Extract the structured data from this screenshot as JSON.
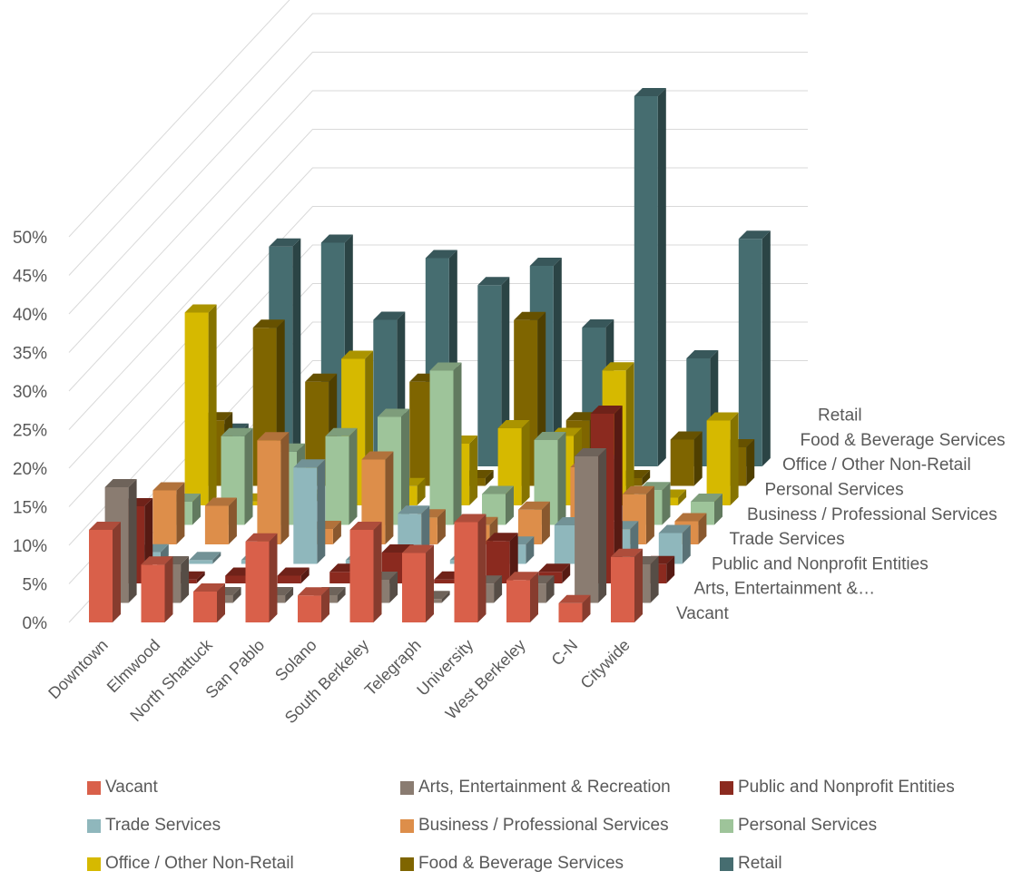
{
  "chart_data": {
    "type": "bar",
    "subtype": "3d-column",
    "title": "",
    "xlabel": "",
    "ylabel": "",
    "ylim": [
      0,
      50
    ],
    "y_ticks": [
      "0%",
      "5%",
      "10%",
      "15%",
      "20%",
      "25%",
      "30%",
      "35%",
      "40%",
      "45%",
      "50%"
    ],
    "grid": true,
    "legend_position": "bottom",
    "categories": [
      "Downtown",
      "Elmwood",
      "North Shattuck",
      "San Pablo",
      "Solano",
      "South Berkeley",
      "Telegraph",
      "University",
      "West Berkeley",
      "C-N",
      "Citywide"
    ],
    "series_axis_labels": [
      "Vacant",
      "Arts, Entertainment &…",
      "Public and Nonprofit Entities",
      "Trade Services",
      "Business / Professional Services",
      "Personal Services",
      "Office / Other Non-Retail",
      "Food & Beverage Services",
      "Retail"
    ],
    "series": [
      {
        "name": "Vacant",
        "color": "#d9604a",
        "values": [
          12,
          7.5,
          4,
          10.5,
          3.5,
          12,
          9,
          13,
          5.5,
          2.5,
          8.5
        ]
      },
      {
        "name": "Arts, Entertainment & Recreation",
        "color": "#8a7c71",
        "values": [
          15,
          5,
          1,
          1,
          1,
          3,
          0.5,
          2.5,
          2.5,
          19,
          5
        ]
      },
      {
        "name": "Public and Nonprofit Entities",
        "color": "#8b2a1f",
        "values": [
          10,
          0.5,
          1,
          1,
          1.5,
          4,
          0.5,
          5.5,
          1.5,
          22,
          2.5
        ]
      },
      {
        "name": "Trade Services",
        "color": "#8fb7bc",
        "values": [
          1.5,
          0.5,
          0.5,
          12.5,
          0.5,
          6.5,
          0.5,
          2.5,
          5,
          4.5,
          4
        ]
      },
      {
        "name": "Business / Professional Services",
        "color": "#dd8e4a",
        "values": [
          7,
          5,
          13.5,
          2,
          11,
          3.5,
          2.5,
          4.5,
          10,
          6.5,
          3
        ]
      },
      {
        "name": "Personal Services",
        "color": "#9ec49a",
        "values": [
          3,
          11.5,
          9.5,
          11.5,
          14,
          20,
          4,
          11,
          8,
          4.5,
          3
        ]
      },
      {
        "name": "Office / Other Non-Retail",
        "color": "#d6b900",
        "values": [
          25,
          0.5,
          1,
          19,
          2.5,
          8,
          10,
          9,
          17.5,
          1,
          11
        ]
      },
      {
        "name": "Food & Beverage Services",
        "color": "#7f6500",
        "values": [
          8.5,
          20.5,
          13.5,
          1.5,
          13.5,
          1,
          21.5,
          8.5,
          1,
          6,
          5
        ]
      },
      {
        "name": "Retail",
        "color": "#466d70",
        "values": [
          4.5,
          28.5,
          29,
          19,
          27,
          23.5,
          26,
          18,
          48,
          14,
          29.5
        ]
      }
    ]
  }
}
